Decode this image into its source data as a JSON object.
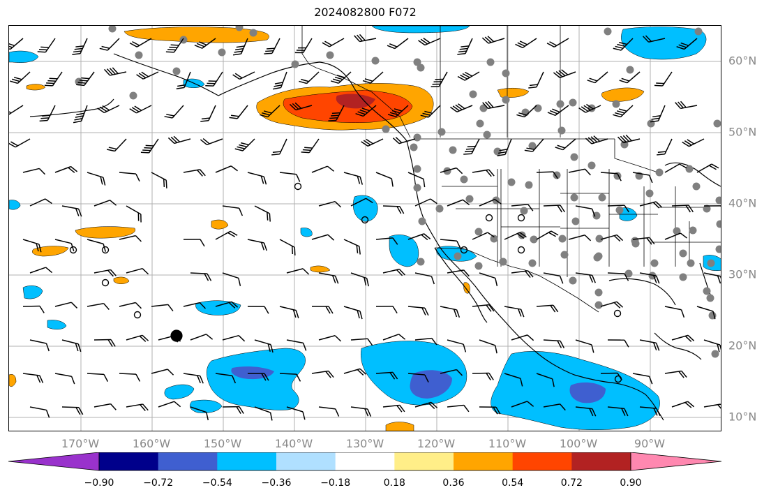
{
  "title": "2024082800 F072",
  "map": {
    "projection": "PlateCarree",
    "lon_range": [
      -180,
      -80
    ],
    "lat_range": [
      7,
      64
    ],
    "gridlines": true,
    "coastlines": true,
    "borders": true,
    "states": true,
    "fill_colors": {
      "positive_0.18_0.36": "#ffee88",
      "positive_0.36_0.54": "#ffa500",
      "positive_0.54_0.72": "#ff4500",
      "positive_0.72_0.90": "#b22222",
      "negative_-0.36_-0.18": "#b0e0ff",
      "negative_-0.54_-0.36": "#00bfff",
      "negative_-0.72_-0.54": "#3f5fd0",
      "negative_-0.90_-0.72": "#00008b"
    },
    "station_marker_color": "#808080",
    "wind_barb_color": "#000000"
  },
  "axes": {
    "lon_ticks": [
      "170°W",
      "160°W",
      "150°W",
      "140°W",
      "130°W",
      "120°W",
      "110°W",
      "100°W",
      "90°W"
    ],
    "lat_ticks": [
      "60°N",
      "50°N",
      "40°N",
      "30°N",
      "20°N",
      "10°N"
    ]
  },
  "colorbar": {
    "tick_labels": [
      "−0.90",
      "−0.72",
      "−0.54",
      "−0.36",
      "−0.18",
      "0.18",
      "0.36",
      "0.54",
      "0.72",
      "0.90"
    ],
    "colors": [
      "#9932cc",
      "#00008b",
      "#3f5fd0",
      "#00bfff",
      "#b0e0ff",
      "#ffffff",
      "#ffee88",
      "#ffa500",
      "#ff4500",
      "#b22222",
      "#ff88b0"
    ],
    "extend": "both"
  }
}
